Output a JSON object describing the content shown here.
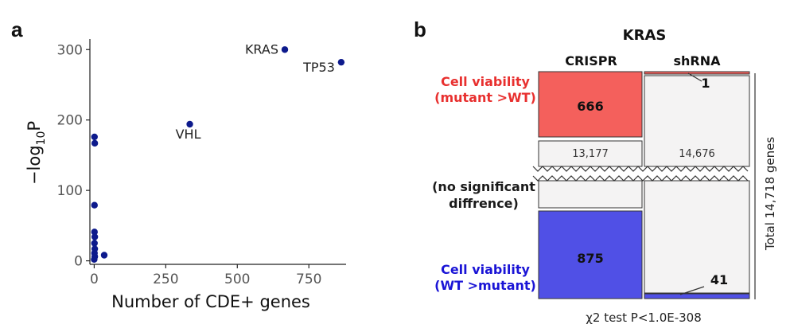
{
  "panel_a": {
    "letter": "a"
  },
  "panel_b": {
    "letter": "b"
  },
  "chart_data": [
    {
      "type": "scatter",
      "title": "",
      "xlabel": "Number of CDE+ genes",
      "ylabel_main": "−log",
      "ylabel_sub": "10",
      "ylabel_tail": "P",
      "xlim": [
        -15,
        880
      ],
      "ylim": [
        -5,
        315
      ],
      "x_ticks": [
        0,
        250,
        500,
        750
      ],
      "y_ticks": [
        0,
        100,
        200,
        300
      ],
      "point_color": "#0d1a8c",
      "points": [
        {
          "x": 666,
          "y": 300,
          "label": "KRAS"
        },
        {
          "x": 863,
          "y": 282,
          "label": "TP53"
        },
        {
          "x": 334,
          "y": 194,
          "label": "VHL"
        },
        {
          "x": 1,
          "y": 176,
          "label": ""
        },
        {
          "x": 2,
          "y": 167,
          "label": ""
        },
        {
          "x": 1,
          "y": 79,
          "label": ""
        },
        {
          "x": 1,
          "y": 41,
          "label": ""
        },
        {
          "x": 2,
          "y": 34,
          "label": ""
        },
        {
          "x": 1,
          "y": 25,
          "label": ""
        },
        {
          "x": 2,
          "y": 17,
          "label": ""
        },
        {
          "x": 1,
          "y": 11,
          "label": ""
        },
        {
          "x": 2,
          "y": 6,
          "label": ""
        },
        {
          "x": 0,
          "y": 2,
          "label": ""
        },
        {
          "x": 35,
          "y": 8,
          "label": ""
        }
      ]
    },
    {
      "type": "mosaic",
      "title": "KRAS",
      "columns": [
        "CRISPR",
        "shRNA"
      ],
      "rows": [
        {
          "label_line1": "Cell viability",
          "label_line2": "(mutant >WT)",
          "color": "#e8302f"
        },
        {
          "label_line1": "(no significant",
          "label_line2": "diffrence)",
          "color": "#1a1a1a"
        },
        {
          "label_line1": "Cell viability",
          "label_line2": "(WT >mutant)",
          "color": "#1a14d6"
        }
      ],
      "counts": {
        "crispr_mutant_gt_wt": 666,
        "crispr_mutant_gt_wt_label": "666",
        "crispr_no_diff": 13177,
        "crispr_no_diff_label": "13,177",
        "crispr_wt_gt_mutant": 875,
        "crispr_wt_gt_mutant_label": "875",
        "shrna_mutant_gt_wt": 1,
        "shrna_mutant_gt_wt_label": "1",
        "shrna_no_diff": 14676,
        "shrna_no_diff_label": "14,676",
        "shrna_wt_gt_mutant": 41,
        "shrna_wt_gt_mutant_label": "41"
      },
      "cell_colors": {
        "mutant_gt_wt": "#f4605c",
        "no_diff": "#f4f3f3",
        "wt_gt_mutant": "#5050e6"
      },
      "total_label": "Total 14,718 genes",
      "test_label": "χ2 test P<1.0E-308"
    }
  ]
}
